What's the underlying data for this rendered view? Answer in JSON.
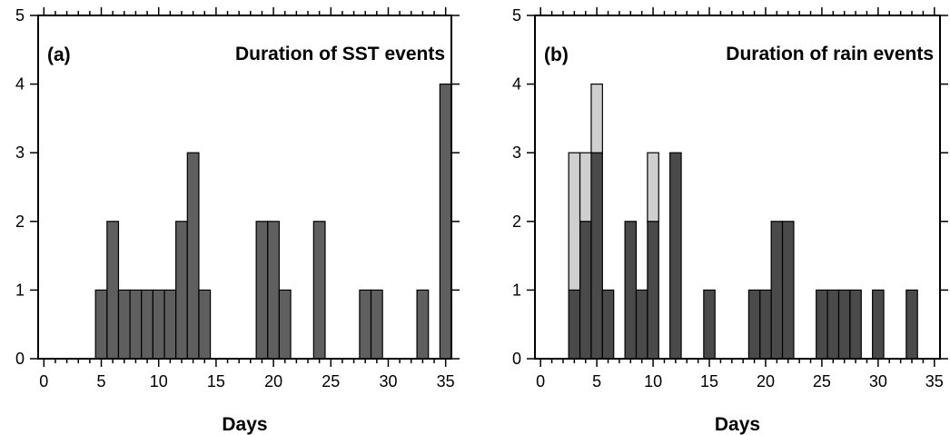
{
  "chart_data": [
    {
      "type": "bar",
      "panel_label": "(a)",
      "title": "Duration of SST events",
      "xlabel": "Days",
      "ylabel": "",
      "xlim": [
        -0.5,
        35.5
      ],
      "ylim": [
        0,
        5
      ],
      "xticks": [
        0,
        5,
        10,
        15,
        20,
        25,
        30,
        35
      ],
      "yticks": [
        0,
        1,
        2,
        3,
        4,
        5
      ],
      "grid": false,
      "colors": {
        "bar": "#5f5f5f",
        "bar_edge": "#000000"
      },
      "series": [
        {
          "x": [
            5,
            6,
            7,
            8,
            9,
            10,
            11,
            12,
            13,
            14,
            19,
            20,
            21,
            24,
            28,
            29,
            33,
            35
          ],
          "values": [
            1,
            2,
            1,
            1,
            1,
            1,
            1,
            2,
            3,
            1,
            2,
            2,
            1,
            2,
            1,
            1,
            1,
            4
          ]
        }
      ]
    },
    {
      "type": "bar",
      "stacked": true,
      "panel_label": "(b)",
      "title": "Duration of rain events",
      "xlabel": "Days",
      "ylabel": "",
      "xlim": [
        -0.5,
        35.5
      ],
      "ylim": [
        0,
        5
      ],
      "xticks": [
        0,
        5,
        10,
        15,
        20,
        25,
        30,
        35
      ],
      "yticks": [
        0,
        1,
        2,
        3,
        4,
        5
      ],
      "grid": false,
      "colors": {
        "dark": "#4a4a4a",
        "light": "#cfcfcf",
        "bar_edge": "#000000"
      },
      "series": [
        {
          "shade": "dark",
          "x": [
            3,
            4,
            5,
            6,
            8,
            9,
            10,
            12,
            15,
            19,
            20,
            21,
            22,
            25,
            26,
            27,
            28,
            30,
            33
          ],
          "values": [
            1,
            2,
            3,
            1,
            2,
            1,
            2,
            3,
            1,
            1,
            1,
            2,
            2,
            1,
            1,
            1,
            1,
            1,
            1
          ]
        },
        {
          "shade": "light",
          "x": [
            3,
            4,
            5,
            10
          ],
          "values": [
            2,
            1,
            1,
            1
          ]
        }
      ]
    }
  ]
}
